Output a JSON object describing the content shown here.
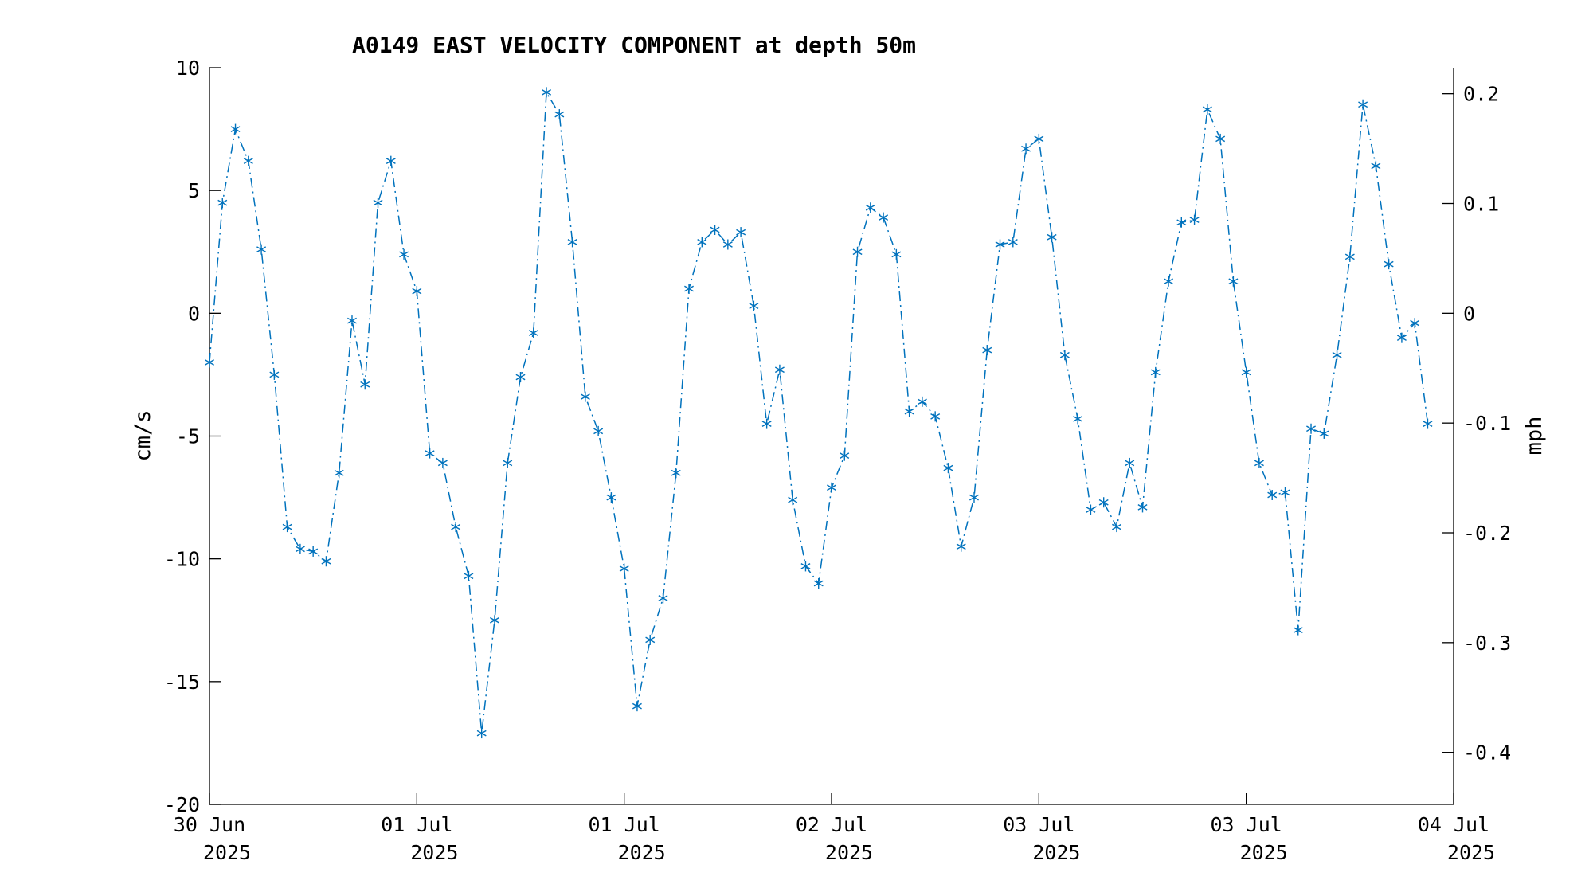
{
  "chart_data": {
    "type": "line",
    "title": "A0149 EAST VELOCITY COMPONENT at depth 50m",
    "ylabel": "cm/s",
    "ylabel_right": "mph",
    "line_color": "#0072BD",
    "line_style": "dash-dot",
    "marker": "asterisk",
    "grid": false,
    "ylim": [
      -20,
      10
    ],
    "ylim_right": [
      -0.4474,
      0.2237
    ],
    "yticks": [
      -20,
      -15,
      -10,
      -5,
      0,
      5,
      10
    ],
    "yticks_right": [
      -0.4,
      -0.3,
      -0.2,
      -0.1,
      0,
      0.1,
      0.2
    ],
    "xlim": [
      "2025-06-30T00:00",
      "2025-07-04T00:00"
    ],
    "x_step_hours": 1,
    "x_start": "2025-06-30T00:00",
    "xticks": [
      {
        "day_offset": 0,
        "line1": "30 Jun",
        "line2": "2025"
      },
      {
        "day_offset": 0.6667,
        "line1": "01 Jul",
        "line2": "2025"
      },
      {
        "day_offset": 1.3333,
        "line1": "01 Jul",
        "line2": "2025"
      },
      {
        "day_offset": 2.0,
        "line1": "02 Jul",
        "line2": "2025"
      },
      {
        "day_offset": 2.6667,
        "line1": "03 Jul",
        "line2": "2025"
      },
      {
        "day_offset": 3.3333,
        "line1": "03 Jul",
        "line2": "2025"
      },
      {
        "day_offset": 4.0,
        "line1": "04 Jul",
        "line2": "2025"
      }
    ],
    "values": [
      -2.0,
      4.5,
      7.5,
      6.2,
      2.6,
      -2.5,
      -8.7,
      -9.6,
      -9.7,
      -10.1,
      -6.5,
      -0.3,
      -2.9,
      4.5,
      6.2,
      2.4,
      0.9,
      -5.7,
      -6.1,
      -8.7,
      -10.7,
      -17.1,
      -12.5,
      -6.1,
      -2.6,
      -0.8,
      9.0,
      8.1,
      2.9,
      -3.4,
      -4.8,
      -7.5,
      -10.4,
      -16.0,
      -13.3,
      -11.6,
      -6.5,
      1.0,
      2.9,
      3.4,
      2.8,
      3.3,
      0.3,
      -4.5,
      -2.3,
      -7.6,
      -10.3,
      -11.0,
      -7.1,
      -5.8,
      2.5,
      4.3,
      3.9,
      2.4,
      -4.0,
      -3.6,
      -4.2,
      -6.3,
      -9.5,
      -7.5,
      -1.5,
      2.8,
      2.9,
      6.7,
      7.1,
      3.1,
      -1.7,
      -4.3,
      -8.0,
      -7.7,
      -8.7,
      -6.1,
      -7.9,
      -2.4,
      1.3,
      3.7,
      3.8,
      8.3,
      7.1,
      1.3,
      -2.4,
      -6.1,
      -7.4,
      -7.3,
      -12.9,
      -4.7,
      -4.9,
      -1.7,
      2.3,
      8.5,
      6.0,
      2.0,
      -1.0,
      -0.4,
      -4.5
    ]
  }
}
